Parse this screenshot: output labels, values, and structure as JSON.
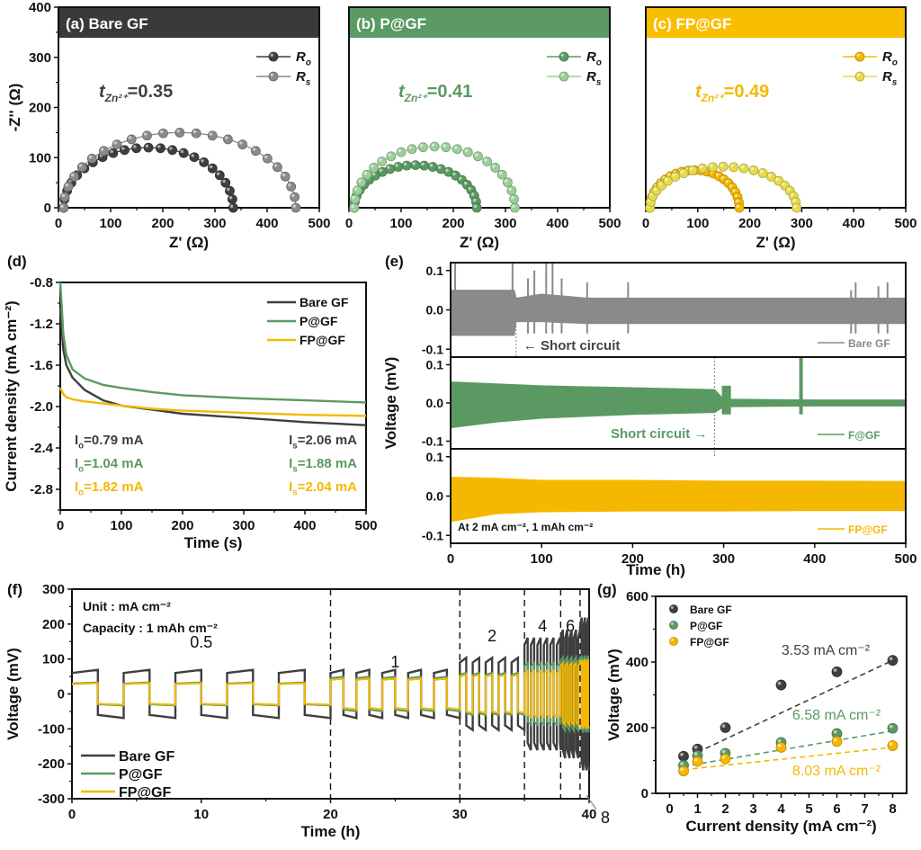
{
  "colors": {
    "bare": "#3f3f3f",
    "bare_light": "#8a8a8a",
    "p": "#5a9a62",
    "p_light": "#9ccf98",
    "fp": "#f5b800",
    "fp_light": "#e6dc4a",
    "header_a": "#3a3a3a",
    "header_b": "#5b9a64",
    "header_c": "#f9be00"
  },
  "chart_data": [
    {
      "id": "a",
      "type": "scatter",
      "title": "(a) Bare GF",
      "xlabel": "Z' (Ω)",
      "ylabel": "-Z'' (Ω)",
      "xlim": [
        0,
        500
      ],
      "ylim": [
        0,
        400
      ],
      "xticks": [
        "0",
        "100",
        "200",
        "300",
        "400",
        "500"
      ],
      "yticks": [
        "0",
        "100",
        "200",
        "300",
        "400"
      ],
      "annotation": {
        "label": "t",
        "sub": "Zn²⁺",
        "value": "=0.35"
      },
      "series": [
        {
          "name": "Ro",
          "sub": "o",
          "semicircle": {
            "x_start": 10,
            "x_end": 335,
            "peak": 120
          }
        },
        {
          "name": "Rs",
          "sub": "s",
          "semicircle": {
            "x_start": 10,
            "x_end": 455,
            "peak": 150
          }
        }
      ]
    },
    {
      "id": "b",
      "type": "scatter",
      "title": "(b) P@GF",
      "xlabel": "Z' (Ω)",
      "ylabel": "",
      "xlim": [
        0,
        500
      ],
      "ylim": [
        0,
        400
      ],
      "xticks": [
        "0",
        "100",
        "200",
        "300",
        "400",
        "500"
      ],
      "annotation": {
        "label": "t",
        "sub": "Zn²⁺",
        "value": "=0.41"
      },
      "series": [
        {
          "name": "Ro",
          "sub": "o",
          "semicircle": {
            "x_start": 10,
            "x_end": 245,
            "peak": 85
          }
        },
        {
          "name": "Rs",
          "sub": "s",
          "semicircle": {
            "x_start": 10,
            "x_end": 318,
            "peak": 122
          }
        }
      ]
    },
    {
      "id": "c",
      "type": "scatter",
      "title": "(c) FP@GF",
      "xlabel": "Z' (Ω)",
      "ylabel": "",
      "xlim": [
        0,
        500
      ],
      "ylim": [
        0,
        400
      ],
      "xticks": [
        "0",
        "100",
        "200",
        "300",
        "400",
        "500"
      ],
      "annotation": {
        "label": "t",
        "sub": "Zn²⁺",
        "value": "=0.49"
      },
      "series": [
        {
          "name": "Ro",
          "sub": "o",
          "semicircle": {
            "x_start": 8,
            "x_end": 180,
            "peak": 75
          }
        },
        {
          "name": "Rs",
          "sub": "s",
          "semicircle": {
            "x_start": 8,
            "x_end": 290,
            "peak": 82
          }
        }
      ]
    },
    {
      "id": "d",
      "type": "line",
      "title": "(d)",
      "xlabel": "Time (s)",
      "ylabel": "Current density (mA cm⁻²)",
      "xlim": [
        0,
        500
      ],
      "ylim": [
        -3.0,
        -0.8
      ],
      "xticks": [
        "0",
        "100",
        "200",
        "300",
        "400",
        "500"
      ],
      "yticks": [
        "-0.8",
        "-1.2",
        "-1.6",
        "-2.0",
        "-2.4",
        "-2.8"
      ],
      "legend": "top-right",
      "series": [
        {
          "name": "Bare GF",
          "x": [
            0,
            5,
            10,
            20,
            40,
            70,
            100,
            150,
            200,
            300,
            400,
            500
          ],
          "y": [
            -1.05,
            -1.45,
            -1.6,
            -1.72,
            -1.84,
            -1.94,
            -1.99,
            -2.03,
            -2.07,
            -2.11,
            -2.15,
            -2.18
          ]
        },
        {
          "name": "P@GF",
          "x": [
            0,
            5,
            10,
            20,
            40,
            70,
            100,
            150,
            200,
            300,
            400,
            500
          ],
          "y": [
            -0.8,
            -1.3,
            -1.5,
            -1.64,
            -1.73,
            -1.79,
            -1.82,
            -1.86,
            -1.89,
            -1.92,
            -1.94,
            -1.96
          ]
        },
        {
          "name": "FP@GF",
          "x": [
            0,
            5,
            10,
            20,
            40,
            70,
            100,
            150,
            200,
            300,
            400,
            500
          ],
          "y": [
            -1.82,
            -1.88,
            -1.91,
            -1.93,
            -1.95,
            -1.97,
            -1.99,
            -2.02,
            -2.04,
            -2.06,
            -2.08,
            -2.09
          ]
        }
      ],
      "annotations_left": [
        {
          "label": "I",
          "sub": "o",
          "value": "=0.79 mA",
          "series": "Bare GF"
        },
        {
          "label": "I",
          "sub": "o",
          "value": "=1.04 mA",
          "series": "P@GF"
        },
        {
          "label": "I",
          "sub": "o",
          "value": "=1.82 mA",
          "series": "FP@GF"
        }
      ],
      "annotations_right": [
        {
          "label": "I",
          "sub": "s",
          "value": "=2.06 mA",
          "series": "Bare GF"
        },
        {
          "label": "I",
          "sub": "s",
          "value": "=1.88 mA",
          "series": "P@GF"
        },
        {
          "label": "I",
          "sub": "s",
          "value": "=2.04 mA",
          "series": "FP@GF"
        }
      ]
    },
    {
      "id": "e",
      "type": "area",
      "title": "(e)",
      "xlabel": "Time (h)",
      "ylabel": "Voltage (mV)",
      "xlim": [
        0,
        500
      ],
      "ylim": [
        -0.12,
        0.12
      ],
      "xticks": [
        "0",
        "100",
        "200",
        "300",
        "400",
        "500"
      ],
      "yticks": [
        "0.1",
        "0.0",
        "-0.1"
      ],
      "note": "At 2 mA cm⁻², 1 mAh cm⁻²",
      "short_circuit_label": "Short circuit",
      "panels": [
        {
          "name": "Bare GF",
          "short_circuit_h": 72,
          "envelope_x": [
            0,
            70,
            72,
            100,
            150,
            200,
            300,
            400,
            500
          ],
          "envelope_upper": [
            0.05,
            0.05,
            0.03,
            0.04,
            0.03,
            0.03,
            0.03,
            0.03,
            0.03
          ],
          "envelope_lower": [
            -0.065,
            -0.065,
            -0.03,
            -0.03,
            -0.035,
            -0.035,
            -0.035,
            -0.035,
            -0.035
          ]
        },
        {
          "name": "F@GF",
          "short_circuit_h": 290,
          "envelope_x": [
            0,
            50,
            100,
            200,
            290,
            300,
            400,
            500
          ],
          "envelope_upper": [
            0.055,
            0.05,
            0.045,
            0.04,
            0.035,
            0.01,
            0.008,
            0.008
          ],
          "envelope_lower": [
            -0.065,
            -0.05,
            -0.04,
            -0.03,
            -0.025,
            -0.01,
            -0.008,
            -0.008
          ]
        },
        {
          "name": "FP@GF",
          "short_circuit_h": null,
          "envelope_x": [
            0,
            50,
            100,
            200,
            300,
            400,
            500
          ],
          "envelope_upper": [
            0.048,
            0.045,
            0.04,
            0.04,
            0.038,
            0.038,
            0.037
          ],
          "envelope_lower": [
            -0.065,
            -0.045,
            -0.04,
            -0.038,
            -0.038,
            -0.037,
            -0.037
          ]
        }
      ]
    },
    {
      "id": "f",
      "type": "line",
      "title": "(f)",
      "xlabel": "Time (h)",
      "ylabel": "Voltage (mV)",
      "xlim": [
        0,
        40
      ],
      "ylim": [
        -300,
        300
      ],
      "xticks": [
        "0",
        "10",
        "20",
        "30",
        "40"
      ],
      "yticks": [
        "300",
        "200",
        "100",
        "0",
        "-100",
        "-200",
        "-300"
      ],
      "notes": [
        "Unit : mA cm⁻²",
        "Capacity : 1 mAh cm⁻²"
      ],
      "legend": "bottom-left",
      "segments": [
        {
          "label": "0.5",
          "x_start": 0,
          "x_end": 20
        },
        {
          "label": "1",
          "x_start": 20,
          "x_end": 30
        },
        {
          "label": "2",
          "x_start": 30,
          "x_end": 35
        },
        {
          "label": "4",
          "x_start": 35,
          "x_end": 37.8
        },
        {
          "label": "6",
          "x_start": 37.8,
          "x_end": 39.3
        },
        {
          "label": "8",
          "x_start": 39.3,
          "x_end": 40
        }
      ],
      "series": [
        {
          "name": "Bare GF",
          "amplitude_mV": [
            60,
            60,
            90,
            140,
            160,
            190
          ]
        },
        {
          "name": "P@GF",
          "amplitude_mV": [
            30,
            45,
            55,
            80,
            95,
            100
          ]
        },
        {
          "name": "FP@GF",
          "amplitude_mV": [
            28,
            40,
            50,
            60,
            80,
            90
          ]
        }
      ]
    },
    {
      "id": "g",
      "type": "scatter",
      "title": "(g)",
      "xlabel": "Current density (mA cm⁻²)",
      "ylabel": "Voltage (mV)",
      "xlim": [
        -0.5,
        8.5
      ],
      "ylim": [
        0,
        600
      ],
      "xticks": [
        "0",
        "1",
        "2",
        "3",
        "4",
        "5",
        "6",
        "7",
        "8"
      ],
      "yticks": [
        "0",
        "200",
        "400",
        "600"
      ],
      "legend": "top-left",
      "series": [
        {
          "name": "Bare GF",
          "x": [
            0.5,
            1,
            2,
            4,
            6,
            8
          ],
          "y": [
            113,
            135,
            200,
            330,
            370,
            405
          ],
          "fit_label": "3.53 mA cm⁻²",
          "fit": [
            [
              1,
              125
            ],
            [
              8,
              405
            ]
          ]
        },
        {
          "name": "P@GF",
          "x": [
            0.5,
            1,
            2,
            4,
            6,
            8
          ],
          "y": [
            85,
            115,
            122,
            155,
            182,
            198
          ],
          "fit_label": "6.58 mA cm⁻²",
          "fit": [
            [
              0.5,
              82
            ],
            [
              8,
              190
            ]
          ]
        },
        {
          "name": "FP@GF",
          "x": [
            0.5,
            1,
            2,
            4,
            6,
            8
          ],
          "y": [
            68,
            97,
            105,
            140,
            158,
            145
          ],
          "fit_label": "8.03 mA cm⁻²",
          "fit": [
            [
              0.5,
              72
            ],
            [
              8,
              140
            ]
          ]
        }
      ]
    }
  ]
}
